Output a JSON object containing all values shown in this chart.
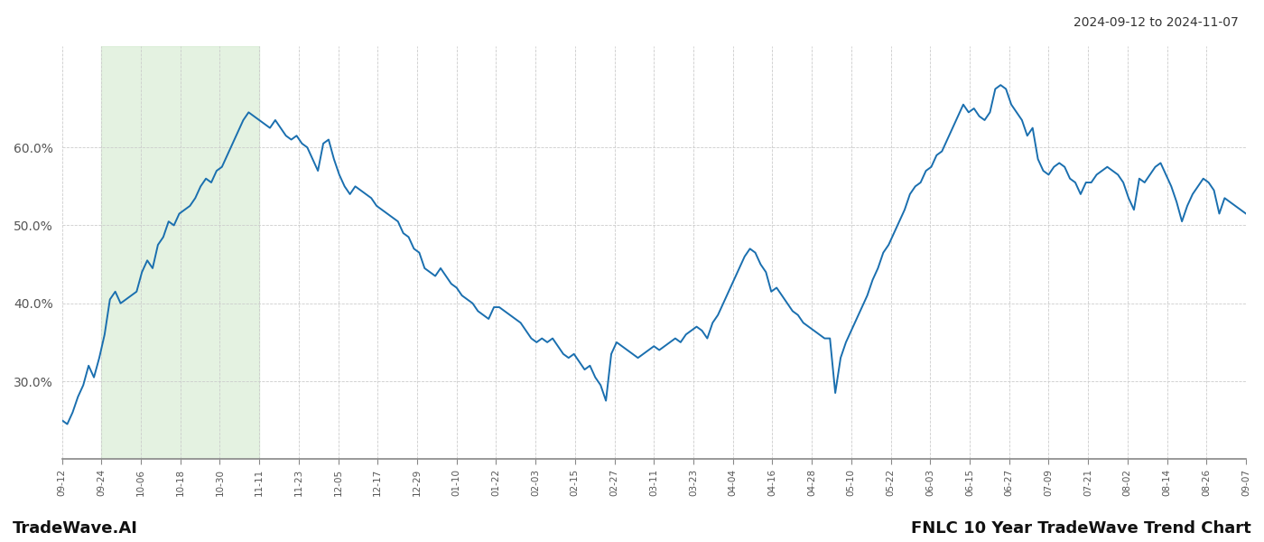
{
  "title_right": "2024-09-12 to 2024-11-07",
  "footer_left": "TradeWave.AI",
  "footer_right": "FNLC 10 Year TradeWave Trend Chart",
  "line_color": "#1a6faf",
  "line_width": 1.4,
  "shade_color": "#d6ecd2",
  "shade_alpha": 0.65,
  "background_color": "#ffffff",
  "grid_color": "#cccccc",
  "ylim": [
    20,
    73
  ],
  "yticks": [
    30,
    40,
    50,
    60
  ],
  "ytick_labels": [
    "30.0%",
    "40.0%",
    "50.0%",
    "60.0%"
  ],
  "x_labels": [
    "09-12",
    "09-24",
    "10-06",
    "10-18",
    "10-30",
    "11-11",
    "11-23",
    "12-05",
    "12-17",
    "12-29",
    "01-10",
    "01-22",
    "02-03",
    "02-15",
    "02-27",
    "03-11",
    "03-23",
    "04-04",
    "04-16",
    "04-28",
    "05-10",
    "05-22",
    "06-03",
    "06-15",
    "06-27",
    "07-09",
    "07-21",
    "08-02",
    "08-14",
    "08-26",
    "09-07"
  ],
  "shade_label_start": "09-24",
  "shade_label_end": "11-11",
  "values": [
    25.0,
    24.5,
    26.0,
    28.0,
    29.5,
    32.0,
    30.5,
    33.0,
    36.0,
    40.5,
    41.5,
    40.0,
    40.5,
    41.0,
    41.5,
    44.0,
    45.5,
    44.5,
    47.5,
    48.5,
    50.5,
    50.0,
    51.5,
    52.0,
    52.5,
    53.5,
    55.0,
    56.0,
    55.5,
    57.0,
    57.5,
    59.0,
    60.5,
    62.0,
    63.5,
    64.5,
    64.0,
    63.5,
    63.0,
    62.5,
    63.5,
    62.5,
    61.5,
    61.0,
    61.5,
    60.5,
    60.0,
    58.5,
    57.0,
    60.5,
    61.0,
    58.5,
    56.5,
    55.0,
    54.0,
    55.0,
    54.5,
    54.0,
    53.5,
    52.5,
    52.0,
    51.5,
    51.0,
    50.5,
    49.0,
    48.5,
    47.0,
    46.5,
    44.5,
    44.0,
    43.5,
    44.5,
    43.5,
    42.5,
    42.0,
    41.0,
    40.5,
    40.0,
    39.0,
    38.5,
    38.0,
    39.5,
    39.5,
    39.0,
    38.5,
    38.0,
    37.5,
    36.5,
    35.5,
    35.0,
    35.5,
    35.0,
    35.5,
    34.5,
    33.5,
    33.0,
    33.5,
    32.5,
    31.5,
    32.0,
    30.5,
    29.5,
    27.5,
    33.5,
    35.0,
    34.5,
    34.0,
    33.5,
    33.0,
    33.5,
    34.0,
    34.5,
    34.0,
    34.5,
    35.0,
    35.5,
    35.0,
    36.0,
    36.5,
    37.0,
    36.5,
    35.5,
    37.5,
    38.5,
    40.0,
    41.5,
    43.0,
    44.5,
    46.0,
    47.0,
    46.5,
    45.0,
    44.0,
    41.5,
    42.0,
    41.0,
    40.0,
    39.0,
    38.5,
    37.5,
    37.0,
    36.5,
    36.0,
    35.5,
    35.5,
    28.5,
    33.0,
    35.0,
    36.5,
    38.0,
    39.5,
    41.0,
    43.0,
    44.5,
    46.5,
    47.5,
    49.0,
    50.5,
    52.0,
    54.0,
    55.0,
    55.5,
    57.0,
    57.5,
    59.0,
    59.5,
    61.0,
    62.5,
    64.0,
    65.5,
    64.5,
    65.0,
    64.0,
    63.5,
    64.5,
    67.5,
    68.0,
    67.5,
    65.5,
    64.5,
    63.5,
    61.5,
    62.5,
    58.5,
    57.0,
    56.5,
    57.5,
    58.0,
    57.5,
    56.0,
    55.5,
    54.0,
    55.5,
    55.5,
    56.5,
    57.0,
    57.5,
    57.0,
    56.5,
    55.5,
    53.5,
    52.0,
    56.0,
    55.5,
    56.5,
    57.5,
    58.0,
    56.5,
    55.0,
    53.0,
    50.5,
    52.5,
    54.0,
    55.0,
    56.0,
    55.5,
    54.5,
    51.5,
    53.5,
    53.0,
    52.5,
    52.0,
    51.5
  ]
}
